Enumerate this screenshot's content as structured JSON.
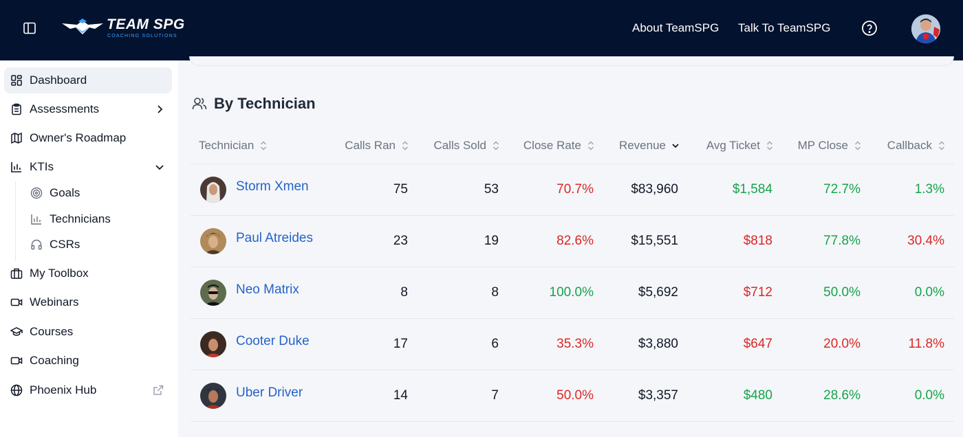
{
  "header": {
    "logo_text": "TEAM SPG",
    "logo_subtitle": "COACHING SOLUTIONS",
    "nav": [
      "About TeamSPG",
      "Talk To TeamSPG"
    ]
  },
  "sidebar": {
    "items": [
      {
        "label": "Dashboard",
        "icon": "dashboard-icon"
      },
      {
        "label": "Assessments",
        "icon": "clipboard-icon"
      },
      {
        "label": "Owner's Roadmap",
        "icon": "map-icon"
      },
      {
        "label": "KTIs",
        "icon": "bar-chart-icon"
      },
      {
        "label": "My Toolbox",
        "icon": "briefcase-icon"
      },
      {
        "label": "Webinars",
        "icon": "video-icon"
      },
      {
        "label": "Courses",
        "icon": "graduation-cap-icon"
      },
      {
        "label": "Coaching",
        "icon": "video-icon"
      },
      {
        "label": "Phoenix Hub",
        "icon": "globe-icon"
      }
    ],
    "kti_sub": [
      {
        "label": "Goals",
        "icon": "target-icon"
      },
      {
        "label": "Technicians",
        "icon": "bar-chart-icon"
      },
      {
        "label": "CSRs",
        "icon": "headphones-icon"
      }
    ]
  },
  "section": {
    "title": "By Technician"
  },
  "table": {
    "headers": [
      "Technician",
      "Calls Ran",
      "Calls Sold",
      "Close Rate",
      "Revenue",
      "Avg Ticket",
      "MP Close",
      "Callback"
    ],
    "rows": [
      {
        "name": "Storm Xmen",
        "calls_ran": "75",
        "calls_sold": "53",
        "close_rate": "70.7%",
        "revenue": "$83,960",
        "avg_ticket": "$1,584",
        "mp_close": "72.7%",
        "callback": "1.3%"
      },
      {
        "name": "Paul Atreides",
        "calls_ran": "23",
        "calls_sold": "19",
        "close_rate": "82.6%",
        "revenue": "$15,551",
        "avg_ticket": "$818",
        "mp_close": "77.8%",
        "callback": "30.4%"
      },
      {
        "name": "Neo Matrix",
        "calls_ran": "8",
        "calls_sold": "8",
        "close_rate": "100.0%",
        "revenue": "$5,692",
        "avg_ticket": "$712",
        "mp_close": "50.0%",
        "callback": "0.0%"
      },
      {
        "name": "Cooter Duke",
        "calls_ran": "17",
        "calls_sold": "6",
        "close_rate": "35.3%",
        "revenue": "$3,880",
        "avg_ticket": "$647",
        "mp_close": "20.0%",
        "callback": "11.8%"
      },
      {
        "name": "Uber Driver",
        "calls_ran": "14",
        "calls_sold": "7",
        "close_rate": "50.0%",
        "revenue": "$3,357",
        "avg_ticket": "$480",
        "mp_close": "28.6%",
        "callback": "0.0%"
      }
    ]
  },
  "colors": {
    "header_bg": "#03122e",
    "link": "#2563c9",
    "good": "#16a34a",
    "bad": "#dc2626"
  }
}
